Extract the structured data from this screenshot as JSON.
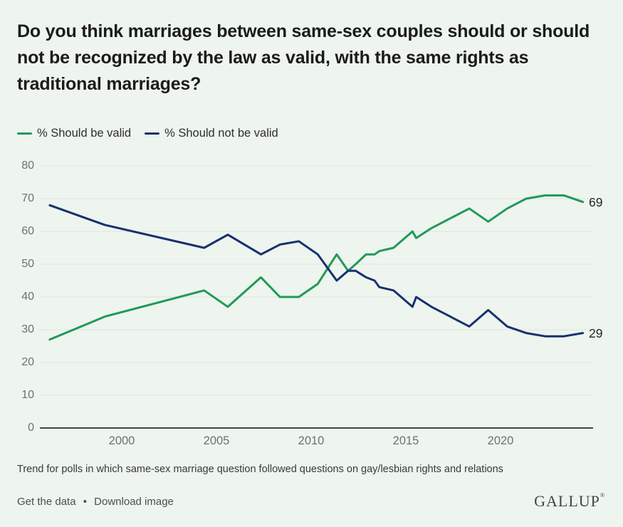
{
  "page": {
    "background": "#eef4ee",
    "title_lines": [
      "Do you think marriages between same-sex couples should or should",
      "not be recognized by the law as valid, with the same rights as",
      "traditional marriages?"
    ],
    "footnote": "Trend for polls in which same-sex marriage question followed questions on gay/lesbian rights and relations",
    "footer": {
      "links": [
        "Get the data",
        "Download image"
      ],
      "separator": "•",
      "logo": "GALLUP",
      "logo_mark": "®"
    }
  },
  "chart_data": {
    "type": "line",
    "title": "Do you think marriages between same-sex couples should or should not be recognized by the law as valid, with the same rights as traditional marriages?",
    "legend_position": "top-left",
    "grid": "horizontal",
    "xlim": [
      1996.0,
      2024.85
    ],
    "ylim": [
      0,
      80
    ],
    "y_ticks": [
      0,
      10,
      20,
      30,
      40,
      50,
      60,
      70,
      80
    ],
    "x_ticks": [
      "2000",
      "2005",
      "2010",
      "2015",
      "2020"
    ],
    "x_tick_years": [
      2000,
      2005,
      2010,
      2015,
      2020
    ],
    "colors": {
      "should_be_valid": "#1f9a58",
      "should_not_be_valid": "#16316f",
      "gridline": "#dde3dd",
      "axis": "#2b2b2b"
    },
    "series": [
      {
        "name": "% Should be valid",
        "slug": "should-be-valid",
        "color": "#1f9a58",
        "end_label": "69",
        "points": [
          [
            1996.2,
            27
          ],
          [
            1999.1,
            34
          ],
          [
            2004.35,
            42
          ],
          [
            2005.6,
            37
          ],
          [
            2007.35,
            46
          ],
          [
            2008.35,
            40
          ],
          [
            2009.35,
            40
          ],
          [
            2010.35,
            44
          ],
          [
            2011.35,
            53
          ],
          [
            2011.95,
            48
          ],
          [
            2012.35,
            50
          ],
          [
            2012.9,
            53
          ],
          [
            2013.35,
            53
          ],
          [
            2013.6,
            54
          ],
          [
            2014.35,
            55
          ],
          [
            2015.35,
            60
          ],
          [
            2015.55,
            58
          ],
          [
            2016.35,
            61
          ],
          [
            2017.35,
            64
          ],
          [
            2018.35,
            67
          ],
          [
            2019.35,
            63
          ],
          [
            2020.35,
            67
          ],
          [
            2021.35,
            70
          ],
          [
            2022.35,
            71
          ],
          [
            2023.35,
            71
          ],
          [
            2024.35,
            69
          ]
        ]
      },
      {
        "name": "% Should not be valid",
        "slug": "should-not-be-valid",
        "color": "#16316f",
        "end_label": "29",
        "points": [
          [
            1996.2,
            68
          ],
          [
            1999.1,
            62
          ],
          [
            2004.35,
            55
          ],
          [
            2005.6,
            59
          ],
          [
            2007.35,
            53
          ],
          [
            2008.35,
            56
          ],
          [
            2009.35,
            57
          ],
          [
            2010.35,
            53
          ],
          [
            2011.35,
            45
          ],
          [
            2011.95,
            48
          ],
          [
            2012.35,
            48
          ],
          [
            2012.9,
            46
          ],
          [
            2013.35,
            45
          ],
          [
            2013.6,
            43
          ],
          [
            2014.35,
            42
          ],
          [
            2015.35,
            37
          ],
          [
            2015.55,
            40
          ],
          [
            2016.35,
            37
          ],
          [
            2017.35,
            34
          ],
          [
            2018.35,
            31
          ],
          [
            2019.35,
            36
          ],
          [
            2020.35,
            31
          ],
          [
            2021.35,
            29
          ],
          [
            2022.35,
            28
          ],
          [
            2023.35,
            28
          ],
          [
            2024.35,
            29
          ]
        ]
      }
    ]
  }
}
